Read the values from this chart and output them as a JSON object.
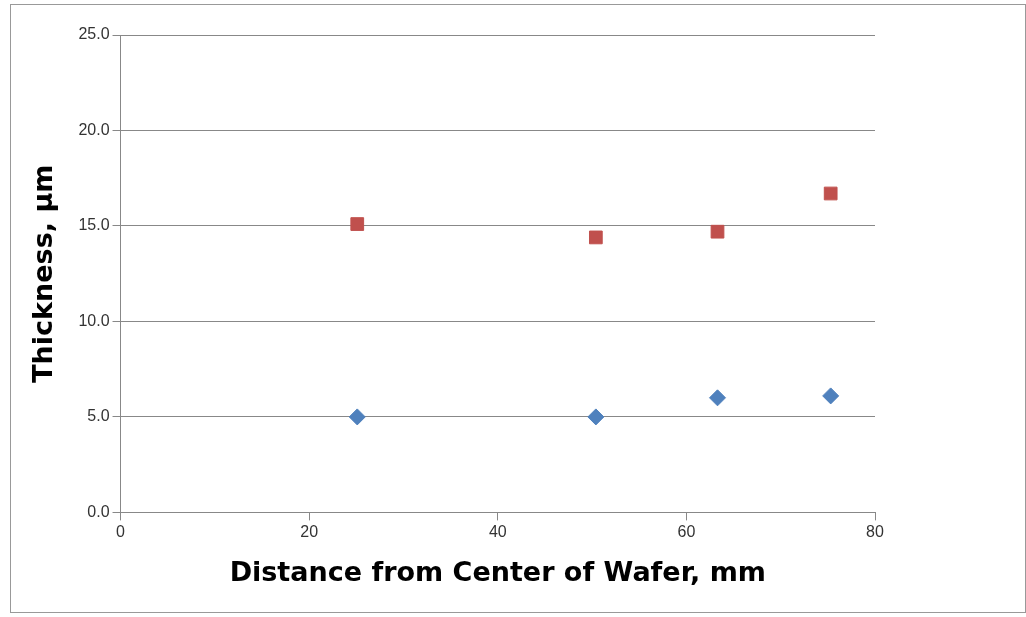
{
  "chart_data": {
    "type": "scatter",
    "xlabel": "Distance from Center of Wafer, mm",
    "ylabel": "Thickness, µm",
    "xlim": [
      0,
      80
    ],
    "xticks": [
      0,
      20,
      40,
      60,
      80
    ],
    "ylim": [
      0,
      25
    ],
    "yticks": [
      {
        "value": 0,
        "label": "0.0"
      },
      {
        "value": 5,
        "label": "5.0"
      },
      {
        "value": 10,
        "label": "10.0"
      },
      {
        "value": 15,
        "label": "15.0"
      },
      {
        "value": 20,
        "label": "20.0"
      },
      {
        "value": 25,
        "label": "25.0"
      }
    ],
    "grid": "y",
    "legend": false,
    "series": [
      {
        "color": "#4f81bd",
        "marker": "diamond",
        "x": [
          25.1,
          50.4,
          63.3,
          75.3
        ],
        "values": [
          5.0,
          5.0,
          6.0,
          6.1
        ]
      },
      {
        "color": "#c0504d",
        "marker": "square",
        "x": [
          25.1,
          50.4,
          63.3,
          75.3
        ],
        "values": [
          15.1,
          14.4,
          14.7,
          16.7
        ]
      }
    ]
  }
}
